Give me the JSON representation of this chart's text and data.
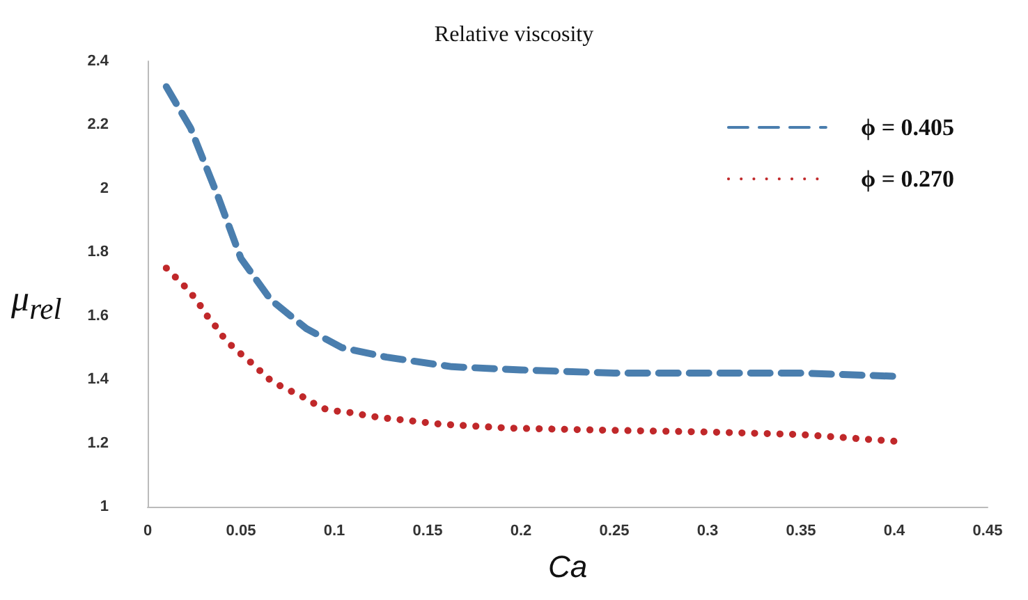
{
  "chart_data": {
    "type": "line",
    "title": "Relative viscosity",
    "xlabel": "Ca",
    "ylabel": "μ$_{rel}$",
    "xlim": [
      0,
      0.45
    ],
    "xticks": [
      0,
      0.05,
      0.1,
      0.15,
      0.2,
      0.25,
      0.3,
      0.35,
      0.4,
      0.45
    ],
    "ylim": [
      1,
      2.4
    ],
    "yticks": [
      1,
      1.2,
      1.4,
      1.6,
      1.8,
      2,
      2.2,
      2.4
    ],
    "grid": false,
    "legend": "top right",
    "marker": "none",
    "series": [
      {
        "name": "ϕ = 0.405",
        "color": "#4a7eae",
        "line_style": "dashed",
        "x": [
          0.01,
          0.023,
          0.038,
          0.05,
          0.066,
          0.085,
          0.104,
          0.128,
          0.163,
          0.2,
          0.25,
          0.3,
          0.35,
          0.4
        ],
        "values": [
          2.32,
          2.19,
          1.97,
          1.78,
          1.65,
          1.56,
          1.5,
          1.47,
          1.44,
          1.43,
          1.42,
          1.42,
          1.42,
          1.41
        ]
      },
      {
        "name": "ϕ = 0.270",
        "color": "#c0282a",
        "line_style": "dotted",
        "x": [
          0.01,
          0.016,
          0.022,
          0.027,
          0.031,
          0.036,
          0.041,
          0.046,
          0.052,
          0.058,
          0.064,
          0.071,
          0.078,
          0.085,
          0.093,
          0.102,
          0.11,
          0.117,
          0.125,
          0.141,
          0.156,
          0.173,
          0.194,
          0.25,
          0.3,
          0.35,
          0.4
        ],
        "values": [
          1.75,
          1.715,
          1.68,
          1.643,
          1.606,
          1.57,
          1.53,
          1.5,
          1.47,
          1.44,
          1.405,
          1.38,
          1.36,
          1.34,
          1.31,
          1.3,
          1.295,
          1.287,
          1.28,
          1.27,
          1.26,
          1.254,
          1.247,
          1.24,
          1.235,
          1.227,
          1.206
        ]
      }
    ]
  }
}
